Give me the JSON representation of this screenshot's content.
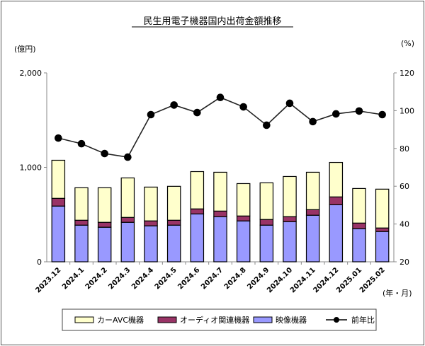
{
  "chart_data": {
    "type": "bar",
    "title": "民生用電子機器国内出荷金額推移",
    "ylabel": "(億円)",
    "y2label": "(%)",
    "xlabel": "(年・月)",
    "ylim": [
      0,
      2000
    ],
    "y2lim": [
      20,
      120
    ],
    "yticks": [
      "0",
      "1,000",
      "2,000"
    ],
    "ytick_values": [
      0,
      1000,
      2000
    ],
    "y2ticks": [
      "20",
      "40",
      "60",
      "80",
      "100",
      "120"
    ],
    "y2tick_values": [
      20,
      40,
      60,
      80,
      100,
      120
    ],
    "categories": [
      "2023.12",
      "2024.1",
      "2024.2",
      "2024.3",
      "2024.4",
      "2024.5",
      "2024.6",
      "2024.7",
      "2024.8",
      "2024.9",
      "2024.10",
      "2024.11",
      "2024.12",
      "2025.01",
      "2025.02"
    ],
    "series": [
      {
        "name": "映像機器",
        "type": "stacked-bar",
        "color": "#9999ff",
        "values": [
          590,
          388,
          366,
          418,
          381,
          388,
          507,
          478,
          433,
          388,
          425,
          493,
          604,
          351,
          321
        ]
      },
      {
        "name": "オーディオ関連機器",
        "type": "stacked-bar",
        "color": "#993366",
        "values": [
          82,
          52,
          52,
          52,
          52,
          52,
          53,
          59,
          52,
          60,
          53,
          59,
          83,
          59,
          37
        ]
      },
      {
        "name": "カーAVC機器",
        "type": "stacked-bar",
        "color": "#ffffcc",
        "values": [
          403,
          344,
          366,
          418,
          358,
          359,
          395,
          411,
          343,
          388,
          425,
          396,
          365,
          366,
          411
        ]
      },
      {
        "name": "前年比",
        "type": "line",
        "axis": "right",
        "color": "#000000",
        "values": [
          85.5,
          82.5,
          77.3,
          75.4,
          97.9,
          103,
          99,
          107,
          102,
          92.3,
          103.9,
          94.2,
          98.3,
          99.8,
          97.9
        ]
      }
    ],
    "legend": {
      "placement": "bottom",
      "order": [
        "カーAVC機器",
        "オーディオ関連機器",
        "映像機器",
        "前年比"
      ]
    }
  }
}
